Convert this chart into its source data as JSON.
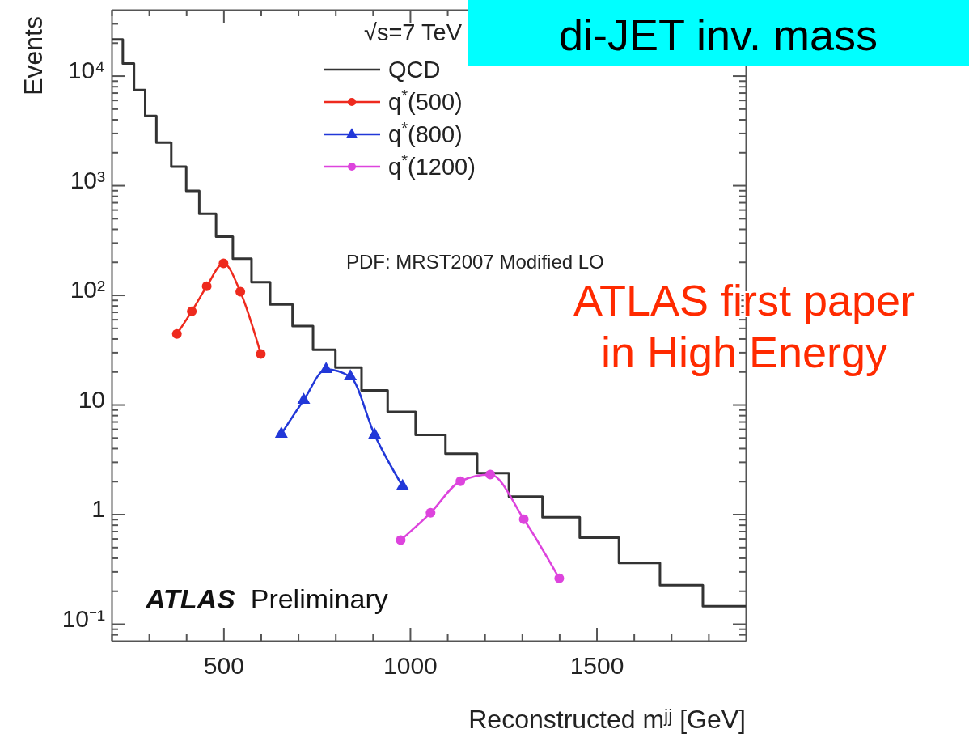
{
  "chart_data": {
    "type": "line",
    "title": "di-JET inv. mass",
    "xlabel": "Reconstructed mʲʲ [GeV]",
    "ylabel": "Events",
    "log": "y",
    "legend": "top",
    "legend_title": "√s=7 TeV",
    "xlim": [
      200,
      1900
    ],
    "xticks": [
      {
        "value": 200,
        "label": null
      },
      {
        "value": 300,
        "label": null
      },
      {
        "value": 400,
        "label": null
      },
      500,
      {
        "value": 600,
        "label": null
      },
      {
        "value": 700,
        "label": null
      },
      {
        "value": 800,
        "label": null
      },
      {
        "value": 900,
        "label": null
      },
      1000,
      {
        "value": 1100,
        "label": null
      },
      {
        "value": 1200,
        "label": null
      },
      {
        "value": 1300,
        "label": null
      },
      {
        "value": 1400,
        "label": null
      },
      1500,
      {
        "value": 1600,
        "label": null
      },
      {
        "value": 1700,
        "label": null
      },
      {
        "value": 1800,
        "label": null
      }
    ],
    "ylim": [
      0.07,
      40000
    ],
    "yticks": [
      {
        "value": 0.08,
        "label": null
      },
      {
        "value": 0.09,
        "label": null
      },
      {
        "value": 0.1,
        "label": "10⁻¹"
      },
      {
        "value": 0.2,
        "label": null
      },
      {
        "value": 0.3,
        "label": null
      },
      {
        "value": 0.4,
        "label": null
      },
      {
        "value": 0.5,
        "label": null
      },
      {
        "value": 0.6,
        "label": null
      },
      {
        "value": 0.7,
        "label": null
      },
      {
        "value": 0.8,
        "label": null
      },
      {
        "value": 0.9,
        "label": null
      },
      1,
      {
        "value": 2,
        "label": null
      },
      {
        "value": 3,
        "label": null
      },
      {
        "value": 4,
        "label": null
      },
      {
        "value": 5,
        "label": null
      },
      {
        "value": 6,
        "label": null
      },
      {
        "value": 7,
        "label": null
      },
      {
        "value": 8,
        "label": null
      },
      {
        "value": 9,
        "label": null
      },
      10,
      {
        "value": 20,
        "label": null
      },
      {
        "value": 30,
        "label": null
      },
      {
        "value": 40,
        "label": null
      },
      {
        "value": 50,
        "label": null
      },
      {
        "value": 60,
        "label": null
      },
      {
        "value": 70,
        "label": null
      },
      {
        "value": 80,
        "label": null
      },
      {
        "value": 90,
        "label": null
      },
      {
        "value": 100,
        "label": "10²"
      },
      {
        "value": 200,
        "label": null
      },
      {
        "value": 300,
        "label": null
      },
      {
        "value": 400,
        "label": null
      },
      {
        "value": 500,
        "label": null
      },
      {
        "value": 600,
        "label": null
      },
      {
        "value": 700,
        "label": null
      },
      {
        "value": 800,
        "label": null
      },
      {
        "value": 900,
        "label": null
      },
      {
        "value": 1000,
        "label": "10³"
      },
      {
        "value": 2000,
        "label": null
      },
      {
        "value": 3000,
        "label": null
      },
      {
        "value": 4000,
        "label": null
      },
      {
        "value": 5000,
        "label": null
      },
      {
        "value": 6000,
        "label": null
      },
      {
        "value": 7000,
        "label": null
      },
      {
        "value": 8000,
        "label": null
      },
      {
        "value": 9000,
        "label": null
      },
      {
        "value": 10000,
        "label": "10⁴"
      },
      {
        "value": 20000,
        "label": null
      },
      {
        "value": 30000,
        "label": null
      }
    ],
    "series": [
      {
        "type": "step",
        "name": "QCD",
        "color": "#333333",
        "x": [
          200,
          230,
          260,
          290,
          320,
          360,
          400,
          435,
          480,
          525,
          575,
          625,
          685,
          740,
          800,
          870,
          940,
          1015,
          1095,
          1180,
          1265,
          1355,
          1455,
          1560,
          1670,
          1785,
          1900
        ],
        "values": [
          21400,
          12900,
          7400,
          4300,
          2450,
          1480,
          890,
          550,
          340,
          214,
          131,
          82,
          52,
          31.6,
          21.8,
          13.5,
          8.6,
          5.3,
          3.56,
          2.37,
          1.45,
          0.94,
          0.61,
          0.36,
          0.225,
          0.145,
          0.145
        ]
      },
      {
        "name": "q$^{*}$(500)",
        "color": "#ee2a1e",
        "marker": "circle",
        "x": [
          375,
          415,
          455,
          500,
          545,
          600
        ],
        "values": [
          44,
          71,
          120,
          194,
          107,
          29
        ]
      },
      {
        "name": "q$^{*}$(800)",
        "color": "#2238d8",
        "marker": "triangle",
        "x": [
          655,
          715,
          775,
          840,
          905,
          980
        ],
        "values": [
          5.4,
          11,
          21,
          18,
          5.3,
          1.8
        ]
      },
      {
        "name": "q$^{*}$(1200)",
        "color": "#dd44dd",
        "marker": "circle",
        "x": [
          975,
          1055,
          1135,
          1215,
          1305,
          1400
        ],
        "values": [
          0.58,
          1.03,
          2.0,
          2.3,
          0.9,
          0.26
        ]
      }
    ],
    "annotations": [
      "PDF: MRST2007 Modified LO",
      "ATLAS Preliminary",
      "ATLAS first paper\nin High Energy"
    ]
  }
}
